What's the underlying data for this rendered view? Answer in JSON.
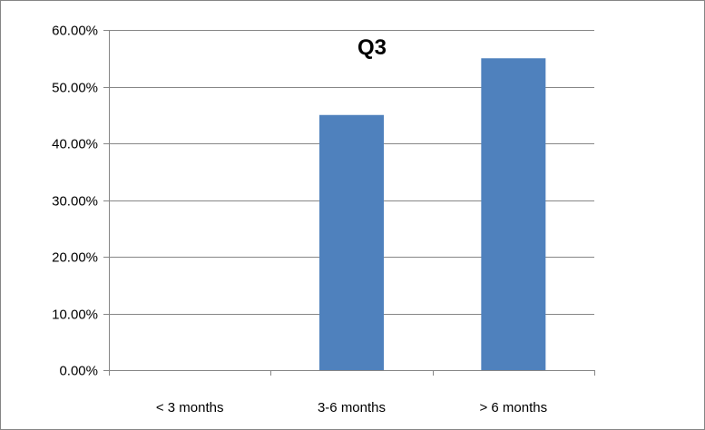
{
  "chart_data": {
    "type": "bar",
    "title": "Q3",
    "xlabel": "",
    "ylabel": "",
    "categories": [
      "< 3 months",
      "3-6 months",
      "> 6 months"
    ],
    "values": [
      0.0,
      45.0,
      55.0
    ],
    "ylim": [
      0,
      60
    ],
    "yticks": [
      0,
      10,
      20,
      30,
      40,
      50,
      60
    ],
    "ytick_labels": [
      "0.00%",
      "10.00%",
      "20.00%",
      "30.00%",
      "40.00%",
      "50.00%",
      "60.00%"
    ],
    "grid": true,
    "legend": "none",
    "colors": {
      "bar": "#4f81bd",
      "gridline": "#868686",
      "axis": "#868686"
    }
  }
}
